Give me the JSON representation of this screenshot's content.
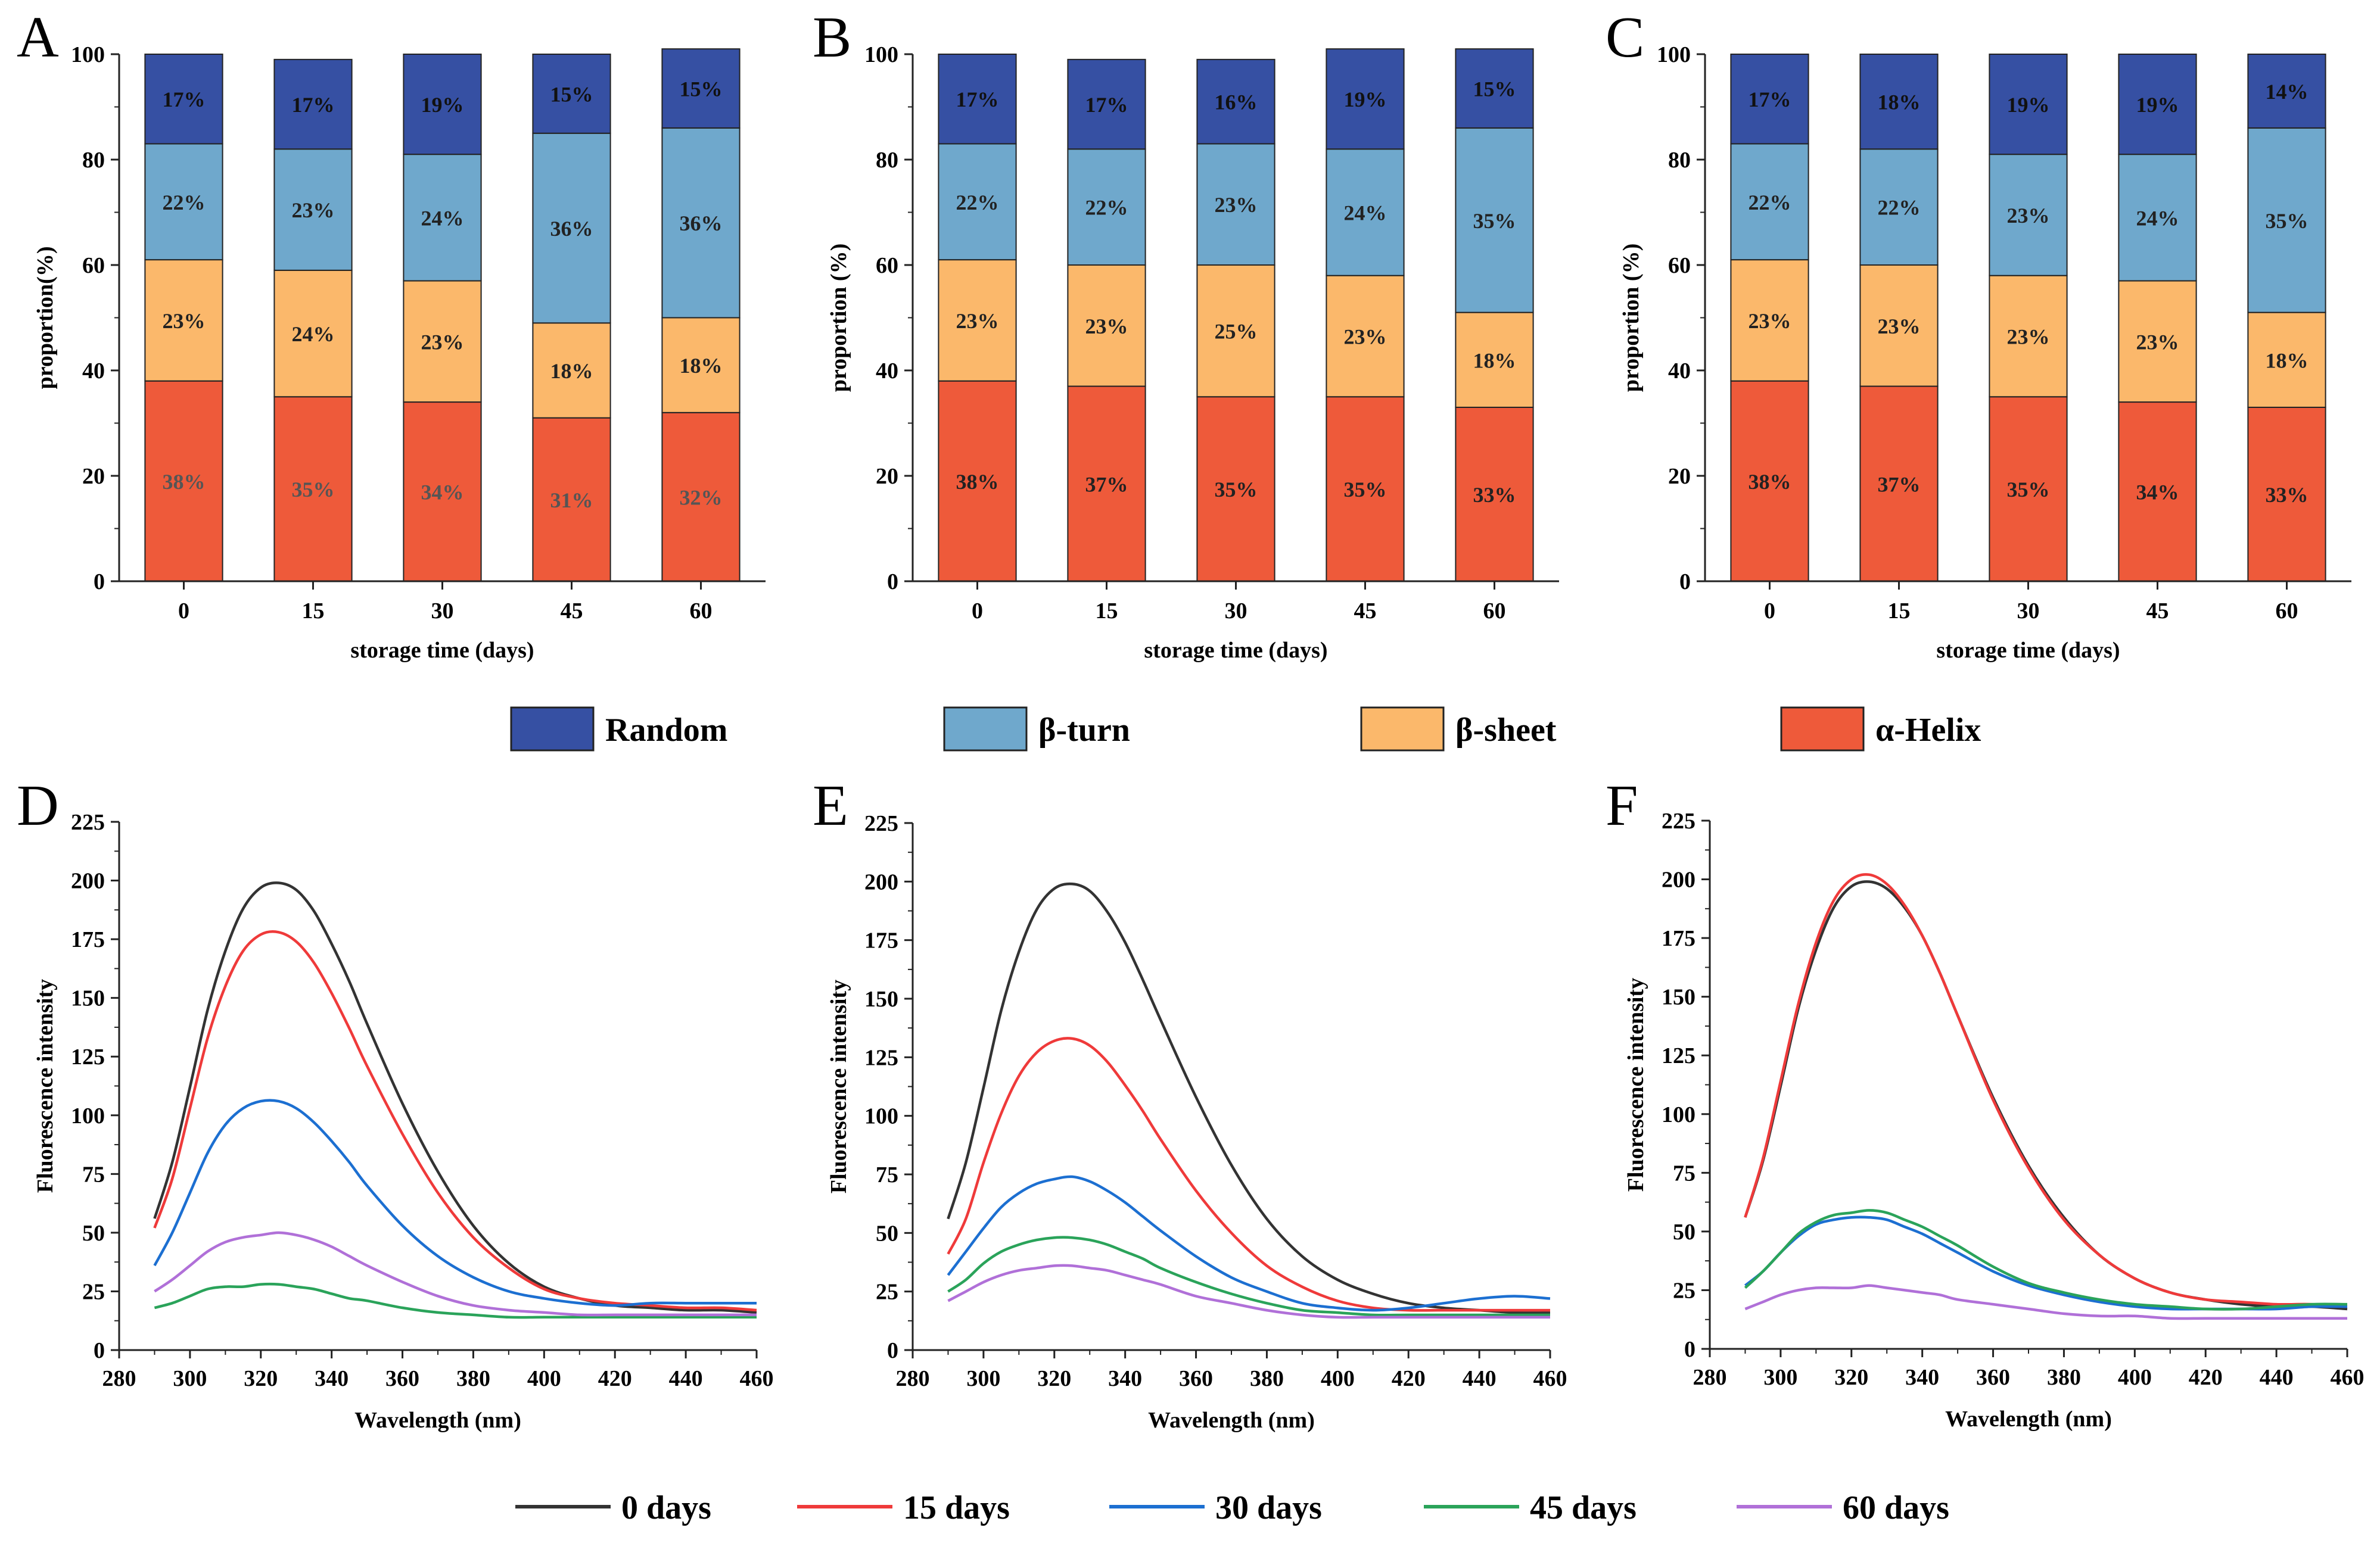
{
  "colors": {
    "Random": "#3650a3",
    "β-turn": "#6fa8cc",
    "β-sheet": "#fbb86b",
    "α-Helix": "#ee5a3a",
    "0 days": "#333333",
    "15 days": "#ef3a3a",
    "30 days": "#1c6fd1",
    "45 days": "#2aa35a",
    "60 days": "#b070d8"
  },
  "legend_top": {
    "items": [
      "Random",
      "β-turn",
      "β-sheet",
      "α-Helix"
    ]
  },
  "legend_bottom": {
    "items": [
      "0 days",
      "15 days",
      "30 days",
      "45 days",
      "60 days"
    ]
  },
  "chart_data": [
    {
      "panel": "A",
      "type": "bar",
      "stacked": true,
      "categories": [
        "0",
        "15",
        "30",
        "45",
        "60"
      ],
      "xlabel": "storage time (days)",
      "ylabel": "proportion(%)",
      "ylim": [
        0,
        100
      ],
      "yticks": [
        "0",
        "20",
        "40",
        "60",
        "80",
        "100"
      ],
      "series": [
        {
          "name": "α-Helix",
          "values": [
            38,
            35,
            34,
            31,
            32
          ],
          "labels": [
            "38%",
            "35%",
            "34%",
            "31%",
            "32%"
          ]
        },
        {
          "name": "β-sheet",
          "values": [
            23,
            24,
            23,
            18,
            18
          ],
          "labels": [
            "23%",
            "24%",
            "23%",
            "18%",
            "18%"
          ]
        },
        {
          "name": "β-turn",
          "values": [
            22,
            23,
            24,
            36,
            36
          ],
          "labels": [
            "22%",
            "23%",
            "24%",
            "36%",
            "36%"
          ]
        },
        {
          "name": "Random",
          "values": [
            17,
            17,
            19,
            15,
            15
          ],
          "labels": [
            "17%",
            "17%",
            "19%",
            "15%",
            "15%"
          ]
        }
      ]
    },
    {
      "panel": "B",
      "type": "bar",
      "stacked": true,
      "categories": [
        "0",
        "15",
        "30",
        "45",
        "60"
      ],
      "xlabel": "storage time (days)",
      "ylabel": "proportion (%)",
      "ylim": [
        0,
        100
      ],
      "yticks": [
        "0",
        "20",
        "40",
        "60",
        "80",
        "100"
      ],
      "series": [
        {
          "name": "α-Helix",
          "values": [
            38,
            37,
            35,
            35,
            33
          ],
          "labels": [
            "38%",
            "37%",
            "35%",
            "35%",
            "33%"
          ]
        },
        {
          "name": "β-sheet",
          "values": [
            23,
            23,
            25,
            23,
            18
          ],
          "labels": [
            "23%",
            "23%",
            "25%",
            "23%",
            "18%"
          ]
        },
        {
          "name": "β-turn",
          "values": [
            22,
            22,
            23,
            24,
            35
          ],
          "labels": [
            "22%",
            "22%",
            "23%",
            "24%",
            "35%"
          ]
        },
        {
          "name": "Random",
          "values": [
            17,
            17,
            16,
            19,
            15
          ],
          "labels": [
            "17%",
            "17%",
            "16%",
            "19%",
            "15%"
          ]
        }
      ]
    },
    {
      "panel": "C",
      "type": "bar",
      "stacked": true,
      "categories": [
        "0",
        "15",
        "30",
        "45",
        "60"
      ],
      "xlabel": "storage time (days)",
      "ylabel": "proportion (%)",
      "ylim": [
        0,
        100
      ],
      "yticks": [
        "0",
        "20",
        "40",
        "60",
        "80",
        "100"
      ],
      "series": [
        {
          "name": "α-Helix",
          "values": [
            38,
            37,
            35,
            34,
            33
          ],
          "labels": [
            "38%",
            "37%",
            "35%",
            "34%",
            "33%"
          ]
        },
        {
          "name": "β-sheet",
          "values": [
            23,
            23,
            23,
            23,
            18
          ],
          "labels": [
            "23%",
            "23%",
            "23%",
            "23%",
            "18%"
          ]
        },
        {
          "name": "β-turn",
          "values": [
            22,
            22,
            23,
            24,
            35
          ],
          "labels": [
            "22%",
            "22%",
            "23%",
            "24%",
            "35%"
          ]
        },
        {
          "name": "Random",
          "values": [
            17,
            18,
            19,
            19,
            14
          ],
          "labels": [
            "17%",
            "18%",
            "19%",
            "19%",
            "14%"
          ]
        }
      ]
    },
    {
      "panel": "D",
      "type": "line",
      "xlabel": "Wavelength (nm)",
      "ylabel": "Fluorescence intensity",
      "xlim": [
        280,
        460
      ],
      "ylim": [
        0,
        225
      ],
      "xticks": [
        "280",
        "300",
        "320",
        "340",
        "360",
        "380",
        "400",
        "420",
        "440",
        "460"
      ],
      "yticks": [
        "0",
        "25",
        "50",
        "75",
        "100",
        "125",
        "150",
        "175",
        "200",
        "225"
      ],
      "x": [
        290,
        295,
        300,
        305,
        310,
        315,
        320,
        325,
        330,
        335,
        340,
        345,
        350,
        360,
        370,
        380,
        390,
        400,
        410,
        420,
        430,
        440,
        450,
        460
      ],
      "series": [
        {
          "name": "0 days",
          "values": [
            56,
            80,
            112,
            145,
            170,
            188,
            197,
            199,
            196,
            187,
            173,
            157,
            139,
            105,
            76,
            53,
            37,
            27,
            22,
            19,
            18,
            17,
            17,
            16
          ]
        },
        {
          "name": "15 days",
          "values": [
            52,
            73,
            103,
            133,
            155,
            170,
            177,
            178,
            174,
            165,
            152,
            137,
            121,
            92,
            67,
            48,
            35,
            26,
            22,
            20,
            19,
            18,
            18,
            17
          ]
        },
        {
          "name": "30 days",
          "values": [
            36,
            50,
            67,
            84,
            96,
            103,
            106,
            106,
            103,
            97,
            89,
            80,
            70,
            53,
            40,
            31,
            25,
            22,
            20,
            19,
            20,
            20,
            20,
            20
          ]
        },
        {
          "name": "45 days",
          "values": [
            18,
            20,
            23,
            26,
            27,
            27,
            28,
            28,
            27,
            26,
            24,
            22,
            21,
            18,
            16,
            15,
            14,
            14,
            14,
            14,
            14,
            14,
            14,
            14
          ]
        },
        {
          "name": "60 days",
          "values": [
            25,
            30,
            36,
            42,
            46,
            48,
            49,
            50,
            49,
            47,
            44,
            40,
            36,
            29,
            23,
            19,
            17,
            16,
            15,
            15,
            15,
            15,
            15,
            15
          ]
        }
      ]
    },
    {
      "panel": "E",
      "type": "line",
      "xlabel": "Wavelength (nm)",
      "ylabel": "Fluorescence intensity",
      "xlim": [
        280,
        460
      ],
      "ylim": [
        0,
        225
      ],
      "xticks": [
        "280",
        "300",
        "320",
        "340",
        "360",
        "380",
        "400",
        "420",
        "440",
        "460"
      ],
      "yticks": [
        "0",
        "25",
        "50",
        "75",
        "100",
        "125",
        "150",
        "175",
        "200",
        "225"
      ],
      "x": [
        290,
        295,
        300,
        305,
        310,
        315,
        320,
        325,
        330,
        335,
        340,
        345,
        350,
        360,
        370,
        380,
        390,
        400,
        410,
        420,
        430,
        440,
        450,
        460
      ],
      "series": [
        {
          "name": "0 days",
          "values": [
            56,
            80,
            112,
            145,
            170,
            188,
            197,
            199,
            196,
            187,
            174,
            158,
            141,
            108,
            79,
            56,
            40,
            30,
            24,
            20,
            18,
            17,
            16,
            16
          ]
        },
        {
          "name": "15 days",
          "values": [
            41,
            56,
            80,
            101,
            117,
            127,
            132,
            133,
            130,
            123,
            113,
            102,
            90,
            68,
            50,
            36,
            27,
            21,
            18,
            17,
            17,
            17,
            17,
            17
          ]
        },
        {
          "name": "30 days",
          "values": [
            32,
            42,
            52,
            61,
            67,
            71,
            73,
            74,
            72,
            68,
            63,
            57,
            51,
            40,
            31,
            25,
            20,
            18,
            17,
            18,
            20,
            22,
            23,
            22
          ]
        },
        {
          "name": "45 days",
          "values": [
            25,
            30,
            37,
            42,
            45,
            47,
            48,
            48,
            47,
            45,
            42,
            39,
            35,
            29,
            24,
            20,
            17,
            16,
            15,
            15,
            15,
            15,
            15,
            15
          ]
        },
        {
          "name": "60 days",
          "values": [
            21,
            25,
            29,
            32,
            34,
            35,
            36,
            36,
            35,
            34,
            32,
            30,
            28,
            23,
            20,
            17,
            15,
            14,
            14,
            14,
            14,
            14,
            14,
            14
          ]
        }
      ]
    },
    {
      "panel": "F",
      "type": "line",
      "xlabel": "Wavelength (nm)",
      "ylabel": "Fluorescence intensity",
      "xlim": [
        280,
        460
      ],
      "ylim": [
        0,
        225
      ],
      "xticks": [
        "280",
        "300",
        "320",
        "340",
        "360",
        "380",
        "400",
        "420",
        "440",
        "460"
      ],
      "yticks": [
        "0",
        "25",
        "50",
        "75",
        "100",
        "125",
        "150",
        "175",
        "200",
        "225"
      ],
      "x": [
        290,
        295,
        300,
        305,
        310,
        315,
        320,
        325,
        330,
        335,
        340,
        345,
        350,
        360,
        370,
        380,
        390,
        400,
        410,
        420,
        430,
        440,
        450,
        460
      ],
      "series": [
        {
          "name": "0 days",
          "values": [
            56,
            80,
            112,
            145,
            170,
            188,
            197,
            199,
            196,
            188,
            176,
            160,
            142,
            107,
            78,
            56,
            40,
            30,
            24,
            21,
            19,
            18,
            18,
            17
          ]
        },
        {
          "name": "15 days",
          "values": [
            56,
            81,
            114,
            147,
            173,
            191,
            200,
            202,
            198,
            189,
            176,
            160,
            142,
            106,
            77,
            55,
            40,
            30,
            24,
            21,
            20,
            19,
            19,
            18
          ]
        },
        {
          "name": "30 days",
          "values": [
            27,
            33,
            41,
            48,
            53,
            55,
            56,
            56,
            55,
            52,
            49,
            45,
            41,
            33,
            27,
            23,
            20,
            18,
            17,
            17,
            17,
            17,
            18,
            18
          ]
        },
        {
          "name": "45 days",
          "values": [
            26,
            33,
            41,
            49,
            54,
            57,
            58,
            59,
            58,
            55,
            52,
            48,
            44,
            35,
            28,
            24,
            21,
            19,
            18,
            17,
            17,
            18,
            19,
            19
          ]
        },
        {
          "name": "60 days",
          "values": [
            17,
            20,
            23,
            25,
            26,
            26,
            26,
            27,
            26,
            25,
            24,
            23,
            21,
            19,
            17,
            15,
            14,
            14,
            13,
            13,
            13,
            13,
            13,
            13
          ]
        }
      ]
    }
  ]
}
